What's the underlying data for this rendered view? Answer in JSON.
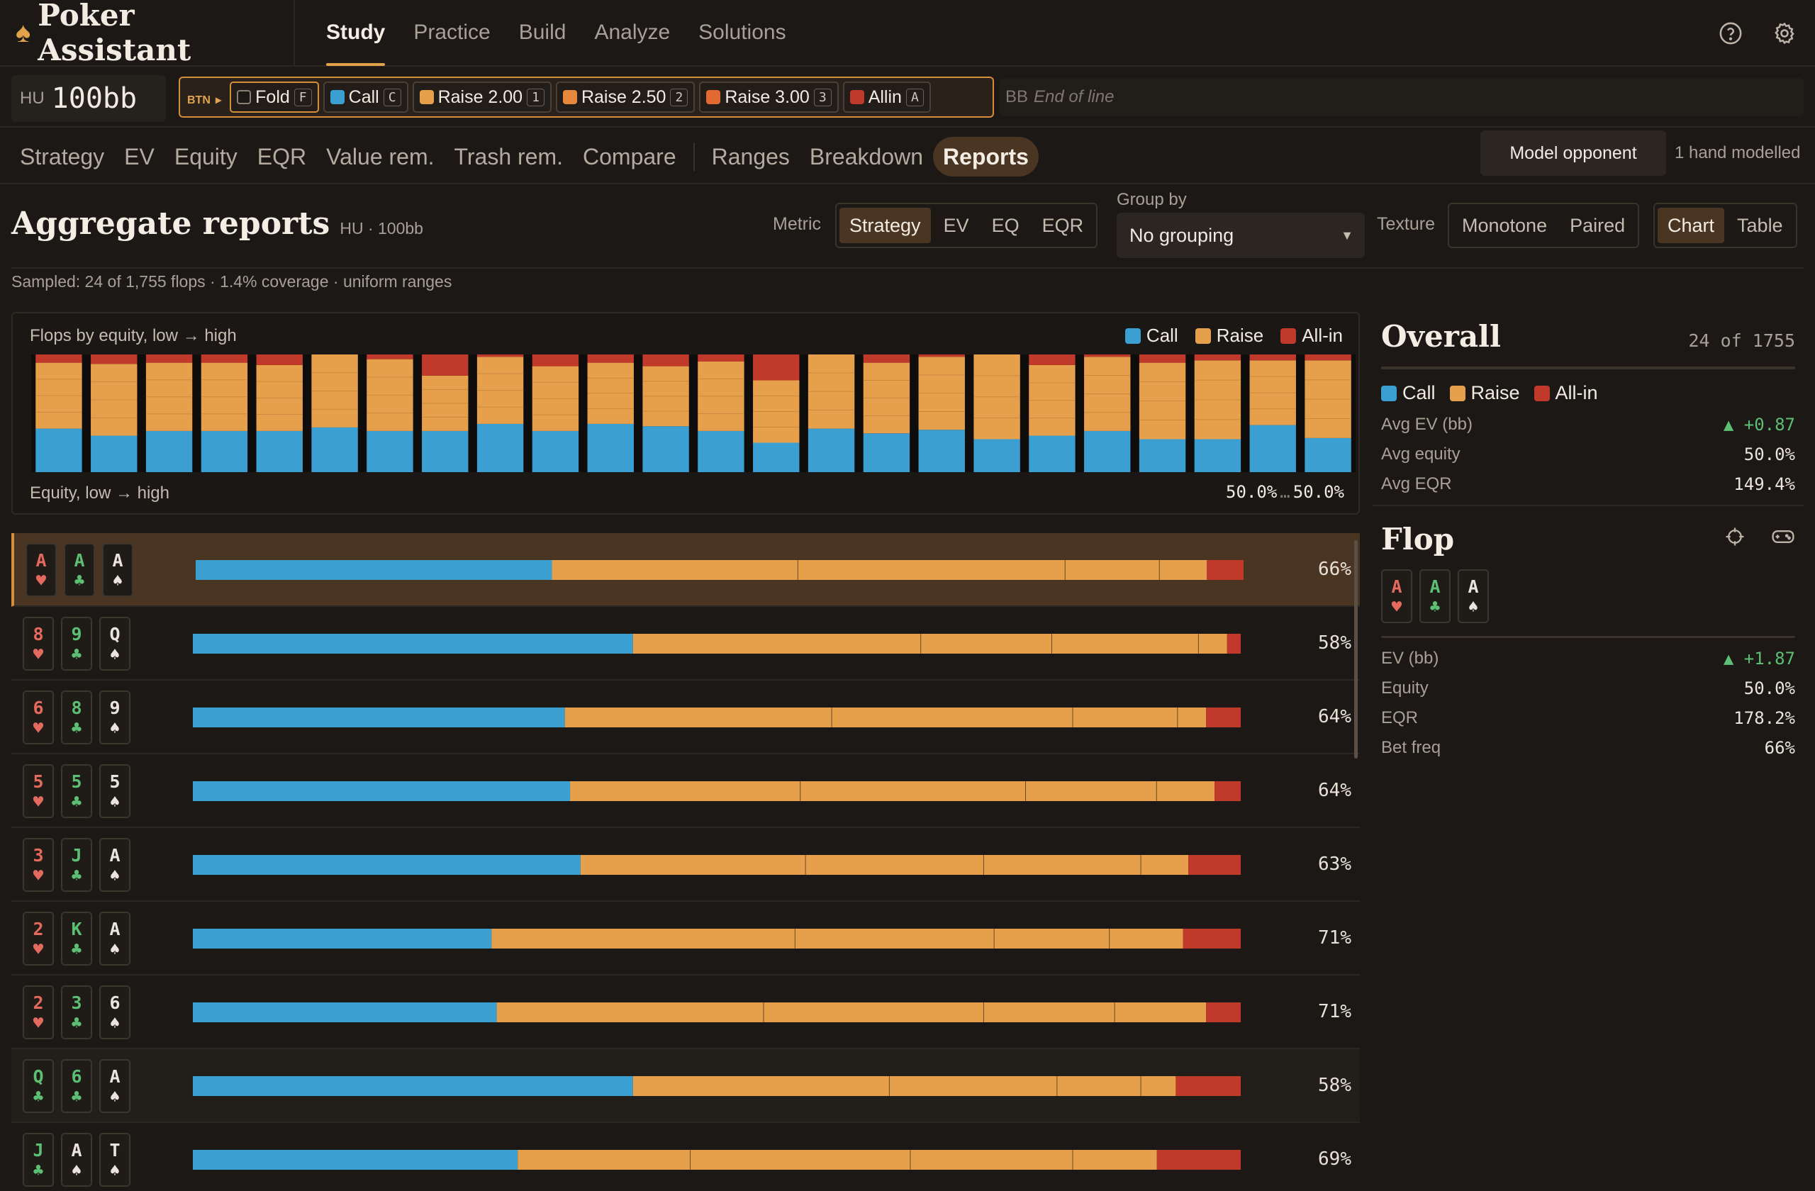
{
  "app": {
    "name": "Poker Assistant"
  },
  "nav": [
    "Study",
    "Practice",
    "Build",
    "Analyze",
    "Solutions"
  ],
  "nav_active": 0,
  "header_icons": [
    "help-icon",
    "gear-icon"
  ],
  "game": {
    "format": "HU",
    "stack": "100bb"
  },
  "action_bar": {
    "position": "BTN",
    "actions": [
      {
        "label": "Fold",
        "key": "F",
        "color": "#1b1815",
        "selected": true
      },
      {
        "label": "Call",
        "key": "C",
        "color": "#3b9fd2"
      },
      {
        "label": "Raise 2.00",
        "key": "1",
        "color": "#e6a04c"
      },
      {
        "label": "Raise 2.50",
        "key": "2",
        "color": "#e6893c"
      },
      {
        "label": "Raise 3.00",
        "key": "3",
        "color": "#e06a32"
      },
      {
        "label": "Allin",
        "key": "A",
        "color": "#c0392b"
      }
    ],
    "next_player": "BB",
    "next_status": "End of line"
  },
  "tabs": [
    "Strategy",
    "EV",
    "Equity",
    "EQR",
    "Value rem.",
    "Trash rem.",
    "Compare",
    "Ranges",
    "Breakdown",
    "Reports"
  ],
  "tab_active": 9,
  "model_button": "Model opponent",
  "model_status": "1 hand modelled",
  "report": {
    "title": "Aggregate reports",
    "subtitle": "HU · 100bb",
    "metric_label": "Metric",
    "metrics": [
      "Strategy",
      "EV",
      "EQ",
      "EQR"
    ],
    "metric_active": 0,
    "group_by_label": "Group by",
    "group_by_value": "No grouping",
    "texture_label": "Texture",
    "textures": [
      "Monotone",
      "Paired"
    ],
    "views": [
      "Chart",
      "Table"
    ],
    "view_active": 0,
    "sampled": "Sampled: 24 of 1,755 flops · 1.4% coverage · uniform ranges"
  },
  "colors": {
    "call": "#3b9fd2",
    "raise": "#e6a04c",
    "allin": "#c0392b"
  },
  "chart_data": {
    "type": "bar",
    "stacked": true,
    "title": "Flops by equity, low → high",
    "xlabel": "Equity, low → high",
    "range_low": "50.0%",
    "range_high": "50.0%",
    "legend": [
      "Call",
      "Raise",
      "All-in"
    ],
    "series": [
      {
        "name": "Call",
        "values": [
          37,
          31,
          35,
          35,
          35,
          38,
          35,
          35,
          41,
          35,
          41,
          39,
          35,
          25,
          37,
          33,
          36,
          28,
          31,
          35,
          28,
          28,
          40,
          29
        ]
      },
      {
        "name": "Raise",
        "values": [
          56,
          61,
          58,
          58,
          56,
          62,
          61,
          47,
          57,
          55,
          52,
          51,
          59,
          53,
          63,
          60,
          62,
          72,
          60,
          63,
          65,
          67,
          55,
          66
        ]
      },
      {
        "name": "All-in",
        "values": [
          7,
          8,
          7,
          7,
          9,
          0,
          4,
          18,
          2,
          10,
          7,
          10,
          6,
          22,
          0,
          7,
          2,
          0,
          9,
          2,
          7,
          5,
          5,
          5
        ]
      }
    ]
  },
  "flops": [
    {
      "cards": [
        {
          "rank": "A",
          "suit": "♥",
          "c": "h"
        },
        {
          "rank": "A",
          "suit": "♣",
          "c": "c"
        },
        {
          "rank": "A",
          "suit": "♠",
          "c": "sp"
        }
      ],
      "call": 34,
      "raise": [
        23.5,
        25.5,
        9,
        4.5
      ],
      "allin": 3.5,
      "pct": "66%",
      "highlight": true
    },
    {
      "cards": [
        {
          "rank": "8",
          "suit": "♥",
          "c": "h"
        },
        {
          "rank": "9",
          "suit": "♣",
          "c": "c"
        },
        {
          "rank": "Q",
          "suit": "♠",
          "c": "sp"
        }
      ],
      "call": 42,
      "raise": [
        27.5,
        12.5,
        14,
        2.7
      ],
      "allin": 1.3,
      "pct": "58%"
    },
    {
      "cards": [
        {
          "rank": "6",
          "suit": "♥",
          "c": "h"
        },
        {
          "rank": "8",
          "suit": "♣",
          "c": "c"
        },
        {
          "rank": "9",
          "suit": "♠",
          "c": "sp"
        }
      ],
      "call": 35.5,
      "raise": [
        25.5,
        23,
        10,
        2.7
      ],
      "allin": 3.3,
      "pct": "64%"
    },
    {
      "cards": [
        {
          "rank": "5",
          "suit": "♥",
          "c": "h"
        },
        {
          "rank": "5",
          "suit": "♣",
          "c": "c"
        },
        {
          "rank": "5",
          "suit": "♠",
          "c": "sp"
        }
      ],
      "call": 36,
      "raise": [
        22,
        21.5,
        12.5,
        5.5
      ],
      "allin": 2.5,
      "pct": "64%"
    },
    {
      "cards": [
        {
          "rank": "3",
          "suit": "♥",
          "c": "h"
        },
        {
          "rank": "J",
          "suit": "♣",
          "c": "c"
        },
        {
          "rank": "A",
          "suit": "♠",
          "c": "sp"
        }
      ],
      "call": 37,
      "raise": [
        21.5,
        17,
        15,
        4.5
      ],
      "allin": 5,
      "pct": "63%"
    },
    {
      "cards": [
        {
          "rank": "2",
          "suit": "♥",
          "c": "h"
        },
        {
          "rank": "K",
          "suit": "♣",
          "c": "c"
        },
        {
          "rank": "A",
          "suit": "♠",
          "c": "sp"
        }
      ],
      "call": 28.5,
      "raise": [
        29,
        19,
        11,
        7
      ],
      "allin": 5.5,
      "pct": "71%"
    },
    {
      "cards": [
        {
          "rank": "2",
          "suit": "♥",
          "c": "h"
        },
        {
          "rank": "3",
          "suit": "♣",
          "c": "c"
        },
        {
          "rank": "6",
          "suit": "♠",
          "c": "sp"
        }
      ],
      "call": 29,
      "raise": [
        25.5,
        21,
        12.5,
        8.7
      ],
      "allin": 3.3,
      "pct": "71%"
    },
    {
      "cards": [
        {
          "rank": "Q",
          "suit": "♣",
          "c": "c"
        },
        {
          "rank": "6",
          "suit": "♣",
          "c": "c"
        },
        {
          "rank": "A",
          "suit": "♠",
          "c": "sp"
        }
      ],
      "call": 42,
      "raise": [
        24.5,
        16,
        8,
        3.3
      ],
      "allin": 6.2,
      "pct": "58%",
      "alt": true
    },
    {
      "cards": [
        {
          "rank": "J",
          "suit": "♣",
          "c": "c"
        },
        {
          "rank": "A",
          "suit": "♠",
          "c": "sp"
        },
        {
          "rank": "T",
          "suit": "♠",
          "c": "sp"
        }
      ],
      "call": 31,
      "raise": [
        16.5,
        21,
        15.5,
        8
      ],
      "allin": 8,
      "pct": "69%"
    }
  ],
  "overall": {
    "title": "Overall",
    "count": "24 of 1755",
    "legend": [
      "Call",
      "Raise",
      "All-in"
    ],
    "stats": [
      {
        "label": "Avg EV (bb)",
        "value": "▲ +0.87",
        "pos": true
      },
      {
        "label": "Avg equity",
        "value": "50.0%"
      },
      {
        "label": "Avg EQR",
        "value": "149.4%"
      }
    ]
  },
  "flop": {
    "title": "Flop",
    "icons": [
      "crosshair-icon",
      "gamepad-icon"
    ],
    "cards": [
      {
        "rank": "A",
        "suit": "♥",
        "c": "h"
      },
      {
        "rank": "A",
        "suit": "♣",
        "c": "c"
      },
      {
        "rank": "A",
        "suit": "♠",
        "c": "sp"
      }
    ],
    "stats": [
      {
        "label": "EV (bb)",
        "value": "▲ +1.87",
        "pos": true
      },
      {
        "label": "Equity",
        "value": "50.0%"
      },
      {
        "label": "EQR",
        "value": "178.2%"
      },
      {
        "label": "Bet freq",
        "value": "66%"
      }
    ]
  }
}
